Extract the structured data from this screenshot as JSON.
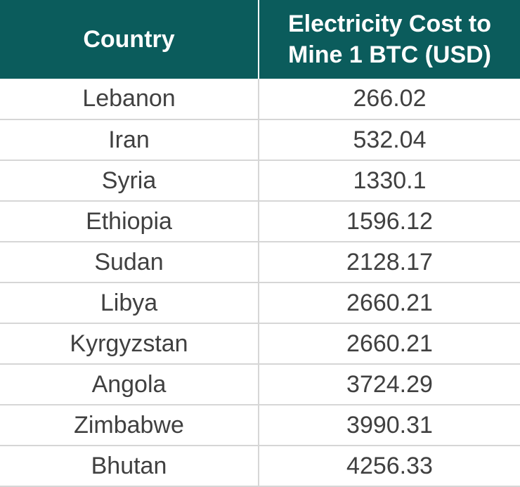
{
  "chart_data": {
    "type": "table",
    "columns": [
      "Country",
      "Electricity Cost to Mine 1 BTC (USD)"
    ],
    "rows": [
      [
        "Lebanon",
        "266.02"
      ],
      [
        "Iran",
        "532.04"
      ],
      [
        "Syria",
        "1330.1"
      ],
      [
        "Ethiopia",
        "1596.12"
      ],
      [
        "Sudan",
        "2128.17"
      ],
      [
        "Libya",
        "2660.21"
      ],
      [
        "Kyrgyzstan",
        "2660.21"
      ],
      [
        "Angola",
        "3724.29"
      ],
      [
        "Zimbabwe",
        "3990.31"
      ],
      [
        "Bhutan",
        "4256.33"
      ]
    ]
  },
  "colors": {
    "header_bg": "#0b5c5c",
    "header_text": "#ffffff",
    "body_text": "#404040",
    "grid": "#d6d6d6"
  }
}
